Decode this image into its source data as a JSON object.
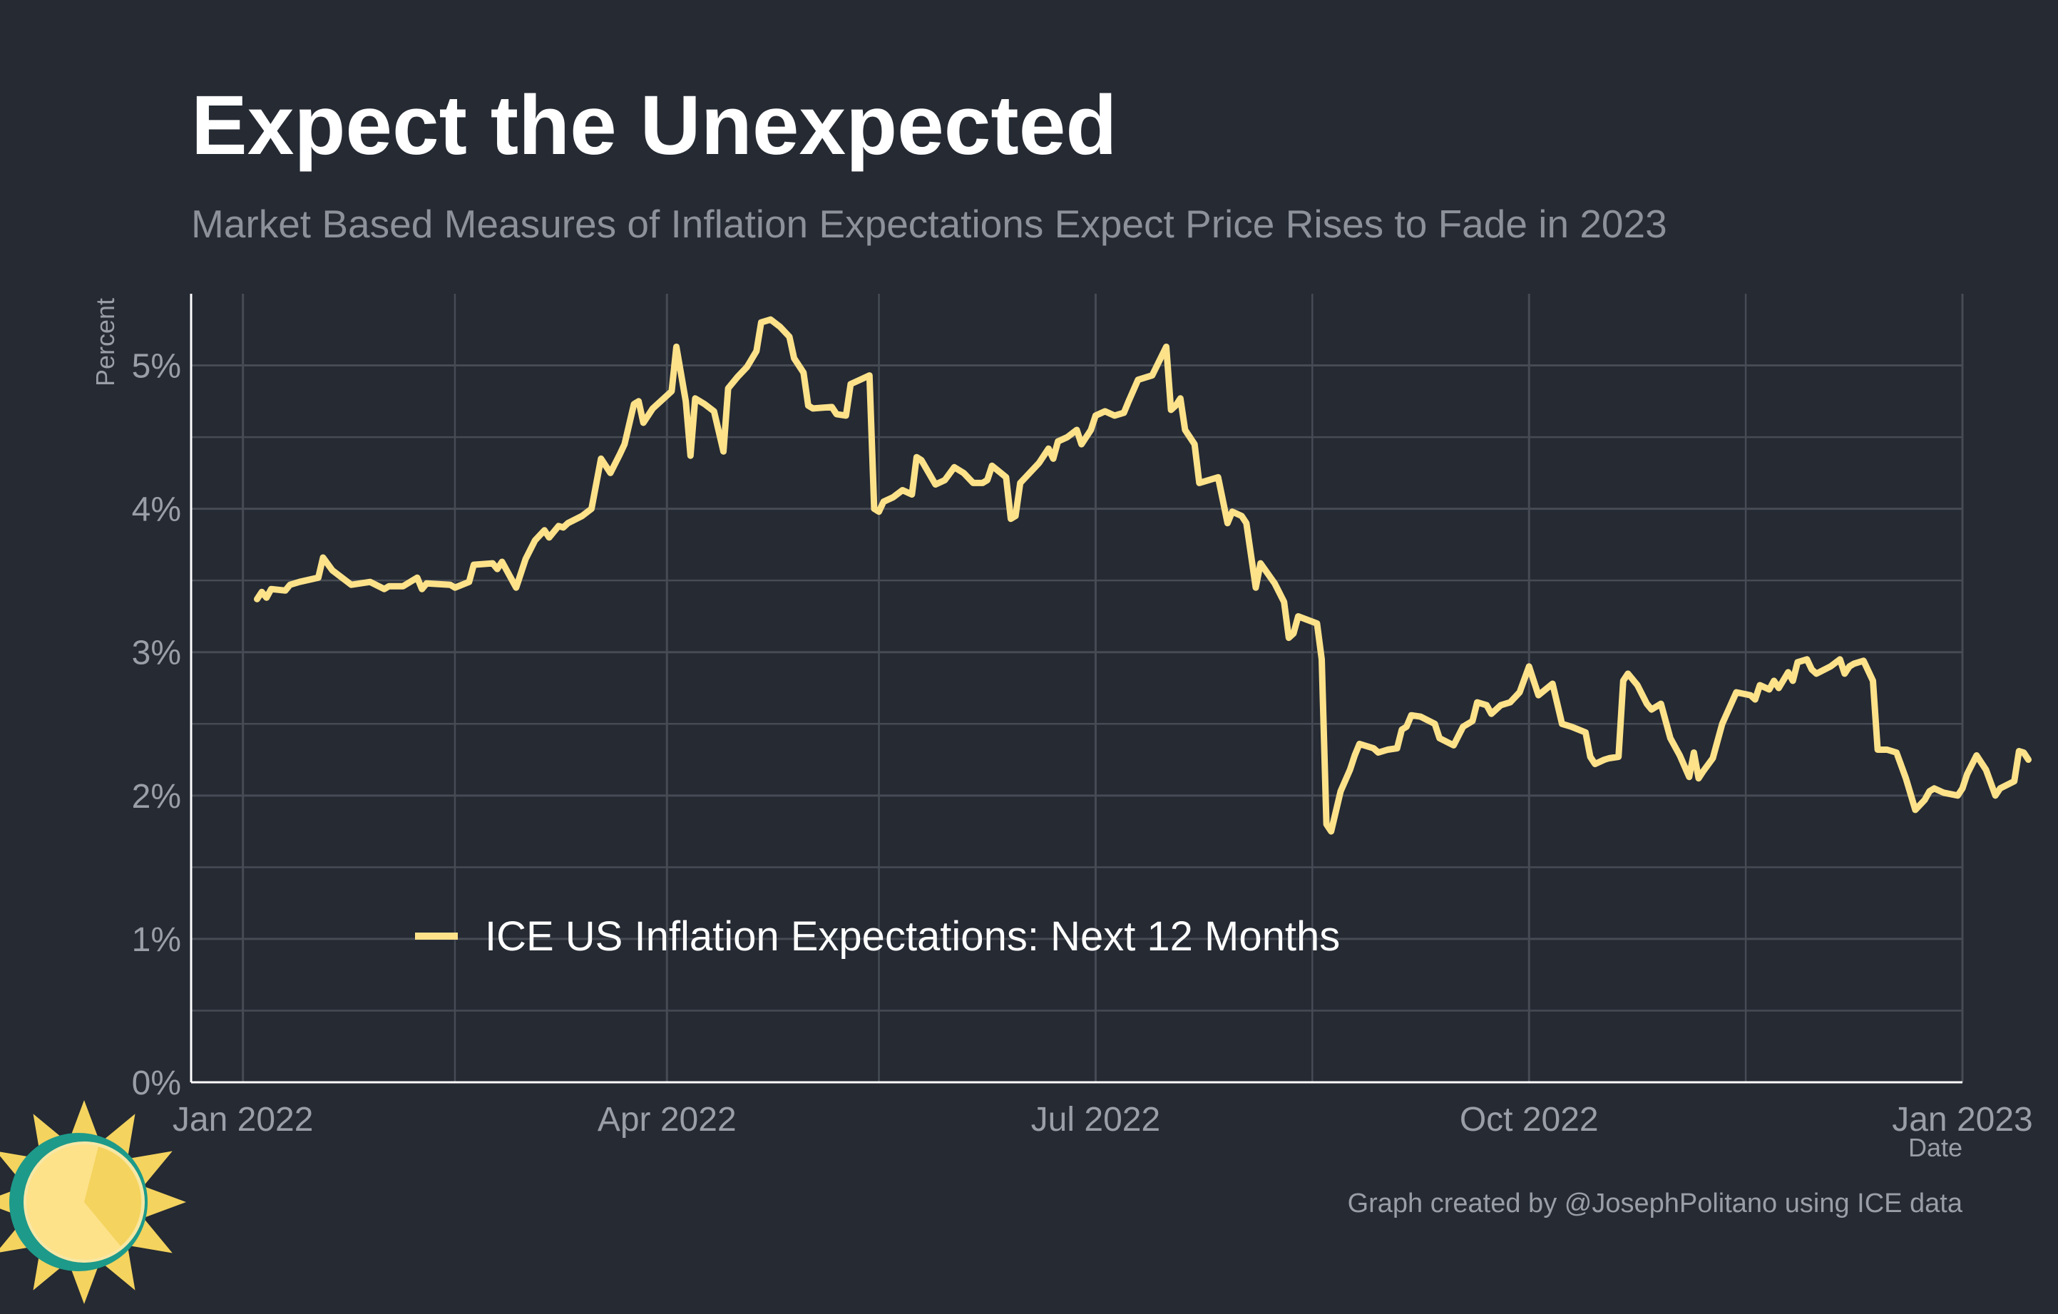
{
  "chart_data": {
    "type": "line",
    "title": "Expect the Unexpected",
    "subtitle": "Market Based Measures of Inflation Expectations Expect Price Rises to Fade in 2023",
    "xlabel": "Date",
    "ylabel": "Percent",
    "caption": "Graph created by @JosephPolitano using ICE data",
    "xlim": [
      "2021-12-21",
      "2023-01-01"
    ],
    "ylim": [
      0,
      5.5
    ],
    "x_ticks": [
      {
        "date": "2022-01-01",
        "label": "Jan 2022"
      },
      {
        "date": "2022-04-01",
        "label": "Apr 2022"
      },
      {
        "date": "2022-07-01",
        "label": "Jul 2022"
      },
      {
        "date": "2022-10-01",
        "label": "Oct 2022"
      },
      {
        "date": "2023-01-01",
        "label": "Jan 2023"
      }
    ],
    "x_minor_ticks": [
      "2022-02-15",
      "2022-05-16",
      "2022-08-16",
      "2022-11-16"
    ],
    "y_ticks": [
      {
        "value": 0,
        "label": "0%"
      },
      {
        "value": 1,
        "label": "1%"
      },
      {
        "value": 2,
        "label": "2%"
      },
      {
        "value": 3,
        "label": "3%"
      },
      {
        "value": 4,
        "label": "4%"
      },
      {
        "value": 5,
        "label": "5%"
      }
    ],
    "y_minor_ticks": [
      0.5,
      1.5,
      2.5,
      3.5,
      4.5
    ],
    "grid": true,
    "legend": {
      "position": "inside-bottom-left"
    },
    "colors": {
      "background": "#252a33",
      "grid": "#464b54",
      "axis": "#ffffff",
      "tick_text": "#9a9ea6",
      "title": "#ffffff",
      "subtitle": "#8d9199",
      "line": "#fde28a"
    },
    "series": [
      {
        "name": "ICE US Inflation Expectations: Next 12 Months",
        "color": "#fde28a",
        "points": [
          [
            "2022-01-04",
            3.37
          ],
          [
            "2022-01-05",
            3.42
          ],
          [
            "2022-01-06",
            3.38
          ],
          [
            "2022-01-07",
            3.44
          ],
          [
            "2022-01-10",
            3.43
          ],
          [
            "2022-01-11",
            3.47
          ],
          [
            "2022-01-13",
            3.49
          ],
          [
            "2022-01-17",
            3.52
          ],
          [
            "2022-01-18",
            3.66
          ],
          [
            "2022-01-20",
            3.57
          ],
          [
            "2022-01-24",
            3.47
          ],
          [
            "2022-01-28",
            3.49
          ],
          [
            "2022-01-31",
            3.44
          ],
          [
            "2022-02-01",
            3.46
          ],
          [
            "2022-02-04",
            3.46
          ],
          [
            "2022-02-07",
            3.52
          ],
          [
            "2022-02-08",
            3.44
          ],
          [
            "2022-02-09",
            3.48
          ],
          [
            "2022-02-14",
            3.47
          ],
          [
            "2022-02-15",
            3.45
          ],
          [
            "2022-02-18",
            3.49
          ],
          [
            "2022-02-19",
            3.61
          ],
          [
            "2022-02-23",
            3.62
          ],
          [
            "2022-02-24",
            3.58
          ],
          [
            "2022-02-25",
            3.63
          ],
          [
            "2022-02-28",
            3.45
          ],
          [
            "2022-03-02",
            3.65
          ],
          [
            "2022-03-04",
            3.78
          ],
          [
            "2022-03-06",
            3.85
          ],
          [
            "2022-03-07",
            3.8
          ],
          [
            "2022-03-09",
            3.88
          ],
          [
            "2022-03-10",
            3.87
          ],
          [
            "2022-03-11",
            3.9
          ],
          [
            "2022-03-14",
            3.95
          ],
          [
            "2022-03-16",
            4.0
          ],
          [
            "2022-03-18",
            4.35
          ],
          [
            "2022-03-20",
            4.25
          ],
          [
            "2022-03-22",
            4.38
          ],
          [
            "2022-03-23",
            4.45
          ],
          [
            "2022-03-25",
            4.73
          ],
          [
            "2022-03-26",
            4.75
          ],
          [
            "2022-03-27",
            4.6
          ],
          [
            "2022-03-29",
            4.7
          ],
          [
            "2022-04-02",
            4.82
          ],
          [
            "2022-04-03",
            5.13
          ],
          [
            "2022-04-05",
            4.75
          ],
          [
            "2022-04-06",
            4.37
          ],
          [
            "2022-04-07",
            4.77
          ],
          [
            "2022-04-09",
            4.73
          ],
          [
            "2022-04-11",
            4.68
          ],
          [
            "2022-04-13",
            4.4
          ],
          [
            "2022-04-14",
            4.84
          ],
          [
            "2022-04-16",
            4.92
          ],
          [
            "2022-04-18",
            4.99
          ],
          [
            "2022-04-20",
            5.1
          ],
          [
            "2022-04-21",
            5.3
          ],
          [
            "2022-04-23",
            5.32
          ],
          [
            "2022-04-25",
            5.27
          ],
          [
            "2022-04-27",
            5.2
          ],
          [
            "2022-04-28",
            5.05
          ],
          [
            "2022-04-30",
            4.95
          ],
          [
            "2022-05-01",
            4.72
          ],
          [
            "2022-05-02",
            4.7
          ],
          [
            "2022-05-06",
            4.71
          ],
          [
            "2022-05-07",
            4.66
          ],
          [
            "2022-05-09",
            4.65
          ],
          [
            "2022-05-10",
            4.87
          ],
          [
            "2022-05-12",
            4.9
          ],
          [
            "2022-05-14",
            4.93
          ],
          [
            "2022-05-15",
            4.0
          ],
          [
            "2022-05-16",
            3.98
          ],
          [
            "2022-05-17",
            4.05
          ],
          [
            "2022-05-19",
            4.08
          ],
          [
            "2022-05-21",
            4.13
          ],
          [
            "2022-05-23",
            4.1
          ],
          [
            "2022-05-24",
            4.36
          ],
          [
            "2022-05-25",
            4.34
          ],
          [
            "2022-05-28",
            4.17
          ],
          [
            "2022-05-30",
            4.2
          ],
          [
            "2022-06-01",
            4.29
          ],
          [
            "2022-06-03",
            4.25
          ],
          [
            "2022-06-05",
            4.18
          ],
          [
            "2022-06-07",
            4.18
          ],
          [
            "2022-06-08",
            4.2
          ],
          [
            "2022-06-09",
            4.3
          ],
          [
            "2022-06-12",
            4.22
          ],
          [
            "2022-06-13",
            3.93
          ],
          [
            "2022-06-14",
            3.95
          ],
          [
            "2022-06-15",
            4.18
          ],
          [
            "2022-06-19",
            4.32
          ],
          [
            "2022-06-21",
            4.42
          ],
          [
            "2022-06-22",
            4.35
          ],
          [
            "2022-06-23",
            4.47
          ],
          [
            "2022-06-25",
            4.5
          ],
          [
            "2022-06-27",
            4.55
          ],
          [
            "2022-06-28",
            4.45
          ],
          [
            "2022-06-30",
            4.55
          ],
          [
            "2022-07-01",
            4.65
          ],
          [
            "2022-07-03",
            4.68
          ],
          [
            "2022-07-05",
            4.65
          ],
          [
            "2022-07-07",
            4.67
          ],
          [
            "2022-07-08",
            4.75
          ],
          [
            "2022-07-10",
            4.9
          ],
          [
            "2022-07-12",
            4.92
          ],
          [
            "2022-07-13",
            4.93
          ],
          [
            "2022-07-16",
            5.13
          ],
          [
            "2022-07-17",
            4.69
          ],
          [
            "2022-07-18",
            4.72
          ],
          [
            "2022-07-19",
            4.77
          ],
          [
            "2022-07-20",
            4.55
          ],
          [
            "2022-07-22",
            4.45
          ],
          [
            "2022-07-23",
            4.18
          ],
          [
            "2022-07-25",
            4.2
          ],
          [
            "2022-07-27",
            4.22
          ],
          [
            "2022-07-29",
            3.9
          ],
          [
            "2022-07-30",
            3.98
          ],
          [
            "2022-08-01",
            3.95
          ],
          [
            "2022-08-02",
            3.9
          ],
          [
            "2022-08-04",
            3.45
          ],
          [
            "2022-08-05",
            3.62
          ],
          [
            "2022-08-08",
            3.48
          ],
          [
            "2022-08-10",
            3.35
          ],
          [
            "2022-08-11",
            3.1
          ],
          [
            "2022-08-12",
            3.13
          ],
          [
            "2022-08-13",
            3.25
          ],
          [
            "2022-08-17",
            3.2
          ],
          [
            "2022-08-18",
            2.95
          ],
          [
            "2022-08-19",
            1.8
          ],
          [
            "2022-08-20",
            1.75
          ],
          [
            "2022-08-22",
            2.03
          ],
          [
            "2022-08-24",
            2.18
          ],
          [
            "2022-08-25",
            2.28
          ],
          [
            "2022-08-26",
            2.36
          ],
          [
            "2022-08-29",
            2.33
          ],
          [
            "2022-08-30",
            2.3
          ],
          [
            "2022-09-01",
            2.32
          ],
          [
            "2022-09-03",
            2.33
          ],
          [
            "2022-09-04",
            2.46
          ],
          [
            "2022-09-05",
            2.48
          ],
          [
            "2022-09-06",
            2.56
          ],
          [
            "2022-09-08",
            2.55
          ],
          [
            "2022-09-11",
            2.5
          ],
          [
            "2022-09-12",
            2.4
          ],
          [
            "2022-09-15",
            2.35
          ],
          [
            "2022-09-17",
            2.48
          ],
          [
            "2022-09-19",
            2.52
          ],
          [
            "2022-09-20",
            2.65
          ],
          [
            "2022-09-22",
            2.63
          ],
          [
            "2022-09-23",
            2.57
          ],
          [
            "2022-09-25",
            2.63
          ],
          [
            "2022-09-27",
            2.65
          ],
          [
            "2022-09-29",
            2.72
          ],
          [
            "2022-10-01",
            2.9
          ],
          [
            "2022-10-03",
            2.7
          ],
          [
            "2022-10-06",
            2.78
          ],
          [
            "2022-10-08",
            2.5
          ],
          [
            "2022-10-10",
            2.48
          ],
          [
            "2022-10-13",
            2.44
          ],
          [
            "2022-10-14",
            2.27
          ],
          [
            "2022-10-15",
            2.22
          ],
          [
            "2022-10-17",
            2.25
          ],
          [
            "2022-10-18",
            2.26
          ],
          [
            "2022-10-20",
            2.27
          ],
          [
            "2022-10-21",
            2.8
          ],
          [
            "2022-10-22",
            2.85
          ],
          [
            "2022-10-24",
            2.77
          ],
          [
            "2022-10-26",
            2.64
          ],
          [
            "2022-10-27",
            2.6
          ],
          [
            "2022-10-29",
            2.64
          ],
          [
            "2022-10-31",
            2.4
          ],
          [
            "2022-11-02",
            2.28
          ],
          [
            "2022-11-04",
            2.13
          ],
          [
            "2022-11-05",
            2.3
          ],
          [
            "2022-11-06",
            2.12
          ],
          [
            "2022-11-07",
            2.17
          ],
          [
            "2022-11-09",
            2.26
          ],
          [
            "2022-11-11",
            2.5
          ],
          [
            "2022-11-14",
            2.72
          ],
          [
            "2022-11-17",
            2.7
          ],
          [
            "2022-11-18",
            2.67
          ],
          [
            "2022-11-19",
            2.77
          ],
          [
            "2022-11-21",
            2.74
          ],
          [
            "2022-11-22",
            2.8
          ],
          [
            "2022-11-23",
            2.75
          ],
          [
            "2022-11-25",
            2.86
          ],
          [
            "2022-11-26",
            2.8
          ],
          [
            "2022-11-27",
            2.93
          ],
          [
            "2022-11-29",
            2.95
          ],
          [
            "2022-11-30",
            2.88
          ],
          [
            "2022-12-01",
            2.85
          ],
          [
            "2022-12-04",
            2.9
          ],
          [
            "2022-12-06",
            2.95
          ],
          [
            "2022-12-07",
            2.85
          ],
          [
            "2022-12-08",
            2.9
          ],
          [
            "2022-12-09",
            2.92
          ],
          [
            "2022-12-11",
            2.94
          ],
          [
            "2022-12-13",
            2.8
          ],
          [
            "2022-12-14",
            2.32
          ],
          [
            "2022-12-16",
            2.32
          ],
          [
            "2022-12-18",
            2.3
          ],
          [
            "2022-12-20",
            2.12
          ],
          [
            "2022-12-22",
            1.9
          ],
          [
            "2022-12-24",
            1.97
          ],
          [
            "2022-12-25",
            2.03
          ],
          [
            "2022-12-26",
            2.05
          ],
          [
            "2022-12-28",
            2.02
          ],
          [
            "2022-12-31",
            2.0
          ],
          [
            "2023-01-01",
            2.05
          ],
          [
            "2023-01-02",
            2.15
          ],
          [
            "2023-01-04",
            2.28
          ],
          [
            "2023-01-06",
            2.18
          ],
          [
            "2023-01-08",
            2.0
          ],
          [
            "2023-01-09",
            2.05
          ],
          [
            "2023-01-12",
            2.1
          ],
          [
            "2023-01-13",
            2.31
          ],
          [
            "2023-01-14",
            2.3
          ],
          [
            "2023-01-15",
            2.25
          ]
        ]
      }
    ]
  }
}
